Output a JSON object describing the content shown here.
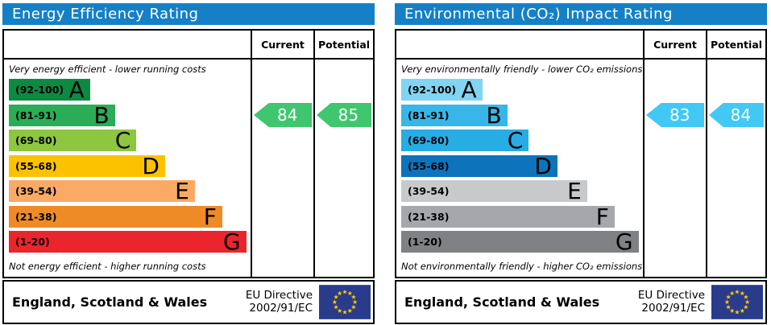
{
  "colors": {
    "header_bg": "#1580c6",
    "table_border": "#000000",
    "flag_bg": "#2a3b8c",
    "flag_star": "#ffcc00",
    "arrow_text": "#ffffff"
  },
  "panels": [
    {
      "id": "energy-efficiency",
      "title": "Energy Efficiency Rating",
      "column_headers": {
        "current": "Current",
        "potential": "Potential"
      },
      "top_note": "Very energy efficient - lower running costs",
      "bottom_note": "Not energy efficient - higher running costs",
      "bands": [
        {
          "letter": "A",
          "range": "(92-100)",
          "color": "#0d8a42",
          "width_pct": 34
        },
        {
          "letter": "B",
          "range": "(81-91)",
          "color": "#2bad57",
          "width_pct": 44.5
        },
        {
          "letter": "C",
          "range": "(69-80)",
          "color": "#8ec640",
          "width_pct": 53.5
        },
        {
          "letter": "D",
          "range": "(55-68)",
          "color": "#fcc200",
          "width_pct": 65.5
        },
        {
          "letter": "E",
          "range": "(39-54)",
          "color": "#fbaa65",
          "width_pct": 78
        },
        {
          "letter": "F",
          "range": "(21-38)",
          "color": "#ef8b27",
          "width_pct": 89.5
        },
        {
          "letter": "G",
          "range": "(1-20)",
          "color": "#ea252b",
          "width_pct": 99.5
        }
      ],
      "current": {
        "value": "84",
        "band_index": 1,
        "arrow_color": "#3fc66e"
      },
      "potential": {
        "value": "85",
        "band_index": 1,
        "arrow_color": "#3fc66e"
      },
      "footer": {
        "region": "England, Scotland & Wales",
        "directive_line1": "EU Directive",
        "directive_line2": "2002/91/EC"
      }
    },
    {
      "id": "environmental-co2-impact",
      "title": "Environmental (CO₂) Impact Rating",
      "column_headers": {
        "current": "Current",
        "potential": "Potential"
      },
      "top_note": "Very environmentally friendly - lower CO₂ emissions",
      "bottom_note": "Not environmentally friendly - higher CO₂ emissions",
      "bands": [
        {
          "letter": "A",
          "range": "(92-100)",
          "color": "#7fd5f2",
          "width_pct": 34
        },
        {
          "letter": "B",
          "range": "(81-91)",
          "color": "#38b6e9",
          "width_pct": 44.5
        },
        {
          "letter": "C",
          "range": "(69-80)",
          "color": "#27ace3",
          "width_pct": 53.5
        },
        {
          "letter": "D",
          "range": "(55-68)",
          "color": "#0d73bb",
          "width_pct": 65.5
        },
        {
          "letter": "E",
          "range": "(39-54)",
          "color": "#c8c9cb",
          "width_pct": 78
        },
        {
          "letter": "F",
          "range": "(21-38)",
          "color": "#a5a7aa",
          "width_pct": 89.5
        },
        {
          "letter": "G",
          "range": "(1-20)",
          "color": "#7f8184",
          "width_pct": 99.5
        }
      ],
      "current": {
        "value": "83",
        "band_index": 1,
        "arrow_color": "#41c8f4"
      },
      "potential": {
        "value": "84",
        "band_index": 1,
        "arrow_color": "#41c8f4"
      },
      "footer": {
        "region": "England, Scotland & Wales",
        "directive_line1": "EU Directive",
        "directive_line2": "2002/91/EC"
      }
    }
  ],
  "chart_data": [
    {
      "type": "bar",
      "title": "Energy Efficiency Rating",
      "categories": [
        "A (92-100)",
        "B (81-91)",
        "C (69-80)",
        "D (55-68)",
        "E (39-54)",
        "F (21-38)",
        "G (1-20)"
      ],
      "band_bar_lengths_pct": [
        34,
        44.5,
        53.5,
        65.5,
        78,
        89.5,
        99.5
      ],
      "series": [
        {
          "name": "Current",
          "value": 84,
          "band": "B"
        },
        {
          "name": "Potential",
          "value": 85,
          "band": "B"
        }
      ],
      "scale": [
        1,
        100
      ],
      "top_annotation": "Very energy efficient - lower running costs",
      "bottom_annotation": "Not energy efficient - higher running costs",
      "footer_text": "England, Scotland & Wales — EU Directive 2002/91/EC"
    },
    {
      "type": "bar",
      "title": "Environmental (CO₂) Impact Rating",
      "categories": [
        "A (92-100)",
        "B (81-91)",
        "C (69-80)",
        "D (55-68)",
        "E (39-54)",
        "F (21-38)",
        "G (1-20)"
      ],
      "band_bar_lengths_pct": [
        34,
        44.5,
        53.5,
        65.5,
        78,
        89.5,
        99.5
      ],
      "series": [
        {
          "name": "Current",
          "value": 83,
          "band": "B"
        },
        {
          "name": "Potential",
          "value": 84,
          "band": "B"
        }
      ],
      "scale": [
        1,
        100
      ],
      "top_annotation": "Very environmentally friendly - lower CO₂ emissions",
      "bottom_annotation": "Not environmentally friendly - higher CO₂ emissions",
      "footer_text": "England, Scotland & Wales — EU Directive 2002/91/EC"
    }
  ]
}
